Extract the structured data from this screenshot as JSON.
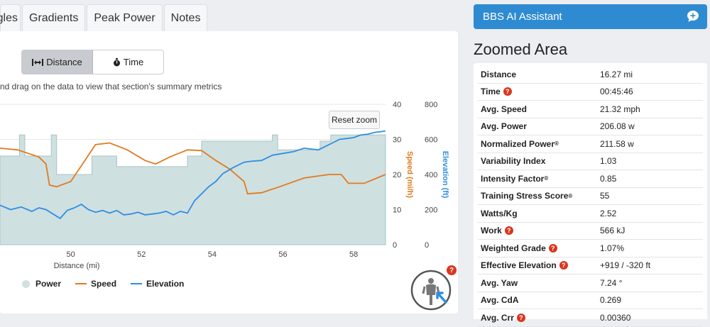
{
  "tabs": [
    "gles",
    "Gradients",
    "Peak Power",
    "Notes"
  ],
  "toggle": {
    "distance_label": "Distance",
    "time_label": "Time"
  },
  "hint": "nd drag on the data to view that section's summary metrics",
  "reset_zoom_label": "Reset zoom",
  "chart_data": {
    "type": "line",
    "xlabel": "Distance (mi)",
    "x_ticks": [
      "50",
      "52",
      "54",
      "56",
      "58"
    ],
    "xlim": [
      48.0,
      58.9
    ],
    "speed_axis": {
      "label": "Speed (mi/h)",
      "ticks": [
        "0",
        "10",
        "20",
        "30",
        "40"
      ],
      "range": [
        0,
        40
      ],
      "color": "#e07b1f"
    },
    "elevation_axis": {
      "label": "Elevation (ft)",
      "ticks": [
        "0",
        "200",
        "400",
        "600",
        "800"
      ],
      "range": [
        0,
        800
      ],
      "color": "#2e8fe0"
    },
    "series": [
      {
        "name": "Power",
        "kind": "area",
        "color": "#cfe0e1",
        "axis": "elevation",
        "points": [
          [
            48.0,
            505
          ],
          [
            48.55,
            505
          ],
          [
            48.55,
            625
          ],
          [
            48.7,
            625
          ],
          [
            48.7,
            505
          ],
          [
            49.1,
            505
          ],
          [
            49.1,
            505
          ],
          [
            49.45,
            505
          ],
          [
            49.45,
            625
          ],
          [
            49.6,
            625
          ],
          [
            49.6,
            400
          ],
          [
            50.6,
            400
          ],
          [
            50.6,
            505
          ],
          [
            51.3,
            505
          ],
          [
            51.3,
            445
          ],
          [
            53.3,
            445
          ],
          [
            53.3,
            505
          ],
          [
            53.7,
            505
          ],
          [
            53.7,
            590
          ],
          [
            55.7,
            590
          ],
          [
            55.7,
            625
          ],
          [
            55.85,
            625
          ],
          [
            55.85,
            540
          ],
          [
            57.05,
            540
          ],
          [
            57.05,
            590
          ],
          [
            57.35,
            590
          ],
          [
            57.35,
            625
          ],
          [
            58.9,
            625
          ]
        ]
      },
      {
        "name": "Speed",
        "kind": "line",
        "color": "#e07b1f",
        "axis": "speed",
        "points": [
          [
            48.0,
            27.5
          ],
          [
            48.5,
            27
          ],
          [
            49.1,
            25
          ],
          [
            49.3,
            23
          ],
          [
            49.4,
            17
          ],
          [
            49.6,
            16.5
          ],
          [
            50.0,
            18
          ],
          [
            50.4,
            24
          ],
          [
            50.7,
            28.5
          ],
          [
            51.1,
            29
          ],
          [
            51.6,
            27
          ],
          [
            52.1,
            24
          ],
          [
            52.4,
            23
          ],
          [
            52.8,
            25
          ],
          [
            53.3,
            27
          ],
          [
            53.7,
            26.8
          ],
          [
            54.1,
            24
          ],
          [
            54.5,
            21.5
          ],
          [
            54.9,
            18
          ],
          [
            55.0,
            14.5
          ],
          [
            55.4,
            14.8
          ],
          [
            55.9,
            16.5
          ],
          [
            56.6,
            19
          ],
          [
            57.3,
            20
          ],
          [
            57.65,
            20
          ],
          [
            57.85,
            17.5
          ],
          [
            58.3,
            17.5
          ],
          [
            58.9,
            20
          ]
        ]
      },
      {
        "name": "Elevation",
        "kind": "line",
        "color": "#2e8fe0",
        "axis": "elevation",
        "points": [
          [
            48.0,
            225
          ],
          [
            48.3,
            200
          ],
          [
            48.6,
            215
          ],
          [
            48.9,
            190
          ],
          [
            49.1,
            210
          ],
          [
            49.3,
            200
          ],
          [
            49.5,
            175
          ],
          [
            49.7,
            150
          ],
          [
            49.9,
            195
          ],
          [
            50.1,
            210
          ],
          [
            50.3,
            230
          ],
          [
            50.5,
            200
          ],
          [
            50.7,
            185
          ],
          [
            50.9,
            195
          ],
          [
            51.1,
            180
          ],
          [
            51.3,
            195
          ],
          [
            51.5,
            170
          ],
          [
            51.7,
            175
          ],
          [
            51.9,
            185
          ],
          [
            52.1,
            170
          ],
          [
            52.3,
            175
          ],
          [
            52.5,
            180
          ],
          [
            52.7,
            190
          ],
          [
            52.9,
            170
          ],
          [
            53.1,
            190
          ],
          [
            53.3,
            180
          ],
          [
            53.5,
            250
          ],
          [
            53.7,
            290
          ],
          [
            53.9,
            330
          ],
          [
            54.1,
            360
          ],
          [
            54.3,
            405
          ],
          [
            54.6,
            440
          ],
          [
            54.9,
            470
          ],
          [
            55.1,
            475
          ],
          [
            55.4,
            480
          ],
          [
            55.7,
            510
          ],
          [
            56.0,
            520
          ],
          [
            56.3,
            530
          ],
          [
            56.6,
            550
          ],
          [
            56.8,
            545
          ],
          [
            57.0,
            540
          ],
          [
            57.2,
            560
          ],
          [
            57.4,
            580
          ],
          [
            57.6,
            600
          ],
          [
            57.8,
            605
          ],
          [
            58.0,
            610
          ],
          [
            58.2,
            625
          ],
          [
            58.4,
            630
          ],
          [
            58.6,
            640
          ],
          [
            58.8,
            645
          ],
          [
            58.9,
            648
          ]
        ]
      }
    ],
    "legend": [
      "Power",
      "Speed",
      "Elevation"
    ],
    "legend_position": "bottom-left",
    "grid": true
  },
  "assistant": {
    "title": "BBS AI Assistant"
  },
  "zoomed_area": {
    "title": "Zoomed Area",
    "rows": [
      {
        "label": "Distance",
        "value": "16.27 mi"
      },
      {
        "label": "Time",
        "value": "00:45:46",
        "help": true
      },
      {
        "label": "Avg. Speed",
        "value": "21.32 mph"
      },
      {
        "label": "Avg. Power",
        "value": "206.08 w"
      },
      {
        "label": "Normalized Power",
        "sup": "®",
        "value": "211.58 w"
      },
      {
        "label": "Variability Index",
        "value": "1.03"
      },
      {
        "label": "Intensity Factor",
        "sup": "®",
        "value": "0.85"
      },
      {
        "label": "Training Stress Score",
        "sup": "®",
        "value": "55"
      },
      {
        "label": "Watts/Kg",
        "value": "2.52"
      },
      {
        "label": "Work",
        "value": "566 kJ",
        "help": true
      },
      {
        "label": "Weighted Grade",
        "value": "1.07%",
        "help": true
      },
      {
        "label": "Effective Elevation",
        "value": "+919 / -320 ft",
        "help": true
      },
      {
        "label": "Avg. Yaw",
        "value": "7.24 °"
      },
      {
        "label": "Avg. CdA",
        "value": "0.269"
      },
      {
        "label": "Avg. Crr",
        "value": "0.00360",
        "help": true
      }
    ]
  },
  "help_glyph": "?"
}
